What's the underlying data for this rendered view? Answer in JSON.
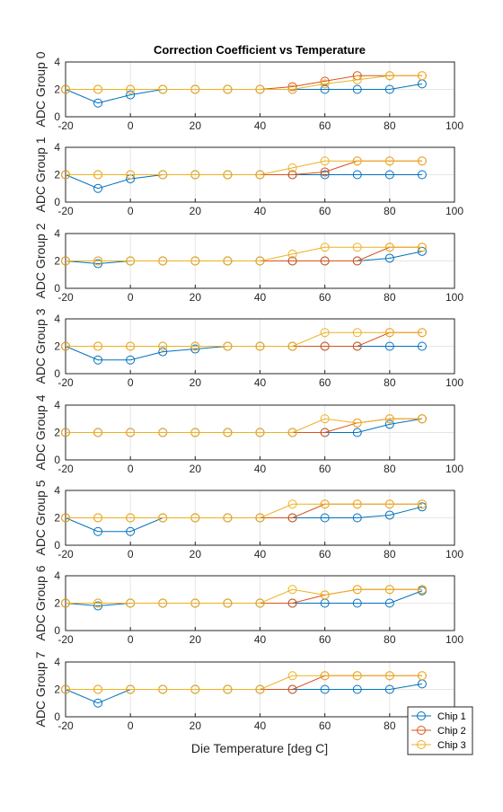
{
  "figure": {
    "title": "Correction Coefficient vs Temperature",
    "xlabel": "Die Temperature [deg C]"
  },
  "colors": {
    "chip1": "#0072BD",
    "chip2": "#D95319",
    "chip3": "#EDB120",
    "grid": "#e6e6e6",
    "axis": "#262626"
  },
  "legend": {
    "entries": [
      "Chip 1",
      "Chip 2",
      "Chip 3"
    ],
    "location": "bottom-right"
  },
  "chart_data": [
    {
      "type": "line",
      "ylabel": "ADC Group 0",
      "x": [
        -20,
        -10,
        0,
        10,
        20,
        30,
        40,
        50,
        60,
        70,
        80,
        90
      ],
      "xlim": [
        -20,
        100
      ],
      "ylim": [
        0,
        4
      ],
      "xticks": [
        "-20",
        "0",
        "20",
        "40",
        "60",
        "80",
        "100"
      ],
      "yticks": [
        "0",
        "2",
        "4"
      ],
      "series": [
        {
          "name": "Chip 1",
          "values": [
            2,
            1,
            1.6,
            2,
            2,
            2,
            2,
            2,
            2,
            2,
            2,
            2.4
          ]
        },
        {
          "name": "Chip 2",
          "values": [
            2,
            2,
            2,
            2,
            2,
            2,
            2,
            2.2,
            2.6,
            3,
            3,
            3
          ]
        },
        {
          "name": "Chip 3",
          "values": [
            2,
            2,
            2,
            2,
            2,
            2,
            2,
            2,
            2.4,
            2.7,
            3,
            3
          ]
        }
      ]
    },
    {
      "type": "line",
      "ylabel": "ADC Group 1",
      "x": [
        -20,
        -10,
        0,
        10,
        20,
        30,
        40,
        50,
        60,
        70,
        80,
        90
      ],
      "xlim": [
        -20,
        100
      ],
      "ylim": [
        0,
        4
      ],
      "xticks": [
        "-20",
        "0",
        "20",
        "40",
        "60",
        "80",
        "100"
      ],
      "yticks": [
        "0",
        "2",
        "4"
      ],
      "series": [
        {
          "name": "Chip 1",
          "values": [
            2,
            1,
            1.7,
            2,
            2,
            2,
            2,
            2,
            2,
            2,
            2,
            2
          ]
        },
        {
          "name": "Chip 2",
          "values": [
            2,
            2,
            2,
            2,
            2,
            2,
            2,
            2,
            2.2,
            3,
            3,
            3
          ]
        },
        {
          "name": "Chip 3",
          "values": [
            2,
            2,
            2,
            2,
            2,
            2,
            2,
            2.5,
            3,
            3,
            3,
            3
          ]
        }
      ]
    },
    {
      "type": "line",
      "ylabel": "ADC Group 2",
      "x": [
        -20,
        -10,
        0,
        10,
        20,
        30,
        40,
        50,
        60,
        70,
        80,
        90
      ],
      "xlim": [
        -20,
        100
      ],
      "ylim": [
        0,
        4
      ],
      "xticks": [
        "-20",
        "0",
        "20",
        "40",
        "60",
        "80",
        "100"
      ],
      "yticks": [
        "0",
        "2",
        "4"
      ],
      "series": [
        {
          "name": "Chip 1",
          "values": [
            2,
            1.8,
            2,
            2,
            2,
            2,
            2,
            2,
            2,
            2,
            2.2,
            2.7
          ]
        },
        {
          "name": "Chip 2",
          "values": [
            2,
            2,
            2,
            2,
            2,
            2,
            2,
            2,
            2,
            2,
            3,
            3
          ]
        },
        {
          "name": "Chip 3",
          "values": [
            2,
            2,
            2,
            2,
            2,
            2,
            2,
            2.5,
            3,
            3,
            3,
            3
          ]
        }
      ]
    },
    {
      "type": "line",
      "ylabel": "ADC Group 3",
      "x": [
        -20,
        -10,
        0,
        10,
        20,
        30,
        40,
        50,
        60,
        70,
        80,
        90
      ],
      "xlim": [
        -20,
        100
      ],
      "ylim": [
        0,
        4
      ],
      "xticks": [
        "-20",
        "0",
        "20",
        "40",
        "60",
        "80",
        "100"
      ],
      "yticks": [
        "0",
        "2",
        "4"
      ],
      "series": [
        {
          "name": "Chip 1",
          "values": [
            2,
            1,
            1,
            1.6,
            1.8,
            2,
            2,
            2,
            2,
            2,
            2,
            2
          ]
        },
        {
          "name": "Chip 2",
          "values": [
            2,
            2,
            2,
            2,
            2,
            2,
            2,
            2,
            2,
            2,
            3,
            3
          ]
        },
        {
          "name": "Chip 3",
          "values": [
            2,
            2,
            2,
            2,
            2,
            2,
            2,
            2,
            3,
            3,
            3,
            3
          ]
        }
      ]
    },
    {
      "type": "line",
      "ylabel": "ADC Group 4",
      "x": [
        -20,
        -10,
        0,
        10,
        20,
        30,
        40,
        50,
        60,
        70,
        80,
        90
      ],
      "xlim": [
        -20,
        100
      ],
      "ylim": [
        0,
        4
      ],
      "xticks": [
        "-20",
        "0",
        "20",
        "40",
        "60",
        "80",
        "100"
      ],
      "yticks": [
        "0",
        "2",
        "4"
      ],
      "series": [
        {
          "name": "Chip 1",
          "values": [
            2,
            2,
            2,
            2,
            2,
            2,
            2,
            2,
            2,
            2,
            2.6,
            3
          ]
        },
        {
          "name": "Chip 2",
          "values": [
            2,
            2,
            2,
            2,
            2,
            2,
            2,
            2,
            2,
            2.7,
            3,
            3
          ]
        },
        {
          "name": "Chip 3",
          "values": [
            2,
            2,
            2,
            2,
            2,
            2,
            2,
            2,
            3,
            2.7,
            3,
            3
          ]
        }
      ]
    },
    {
      "type": "line",
      "ylabel": "ADC Group 5",
      "x": [
        -20,
        -10,
        0,
        10,
        20,
        30,
        40,
        50,
        60,
        70,
        80,
        90
      ],
      "xlim": [
        -20,
        100
      ],
      "ylim": [
        0,
        4
      ],
      "xticks": [
        "-20",
        "0",
        "20",
        "40",
        "60",
        "80",
        "100"
      ],
      "yticks": [
        "0",
        "2",
        "4"
      ],
      "series": [
        {
          "name": "Chip 1",
          "values": [
            2,
            1,
            1,
            2,
            2,
            2,
            2,
            2,
            2,
            2,
            2.2,
            2.8
          ]
        },
        {
          "name": "Chip 2",
          "values": [
            2,
            2,
            2,
            2,
            2,
            2,
            2,
            2,
            3,
            3,
            3,
            3
          ]
        },
        {
          "name": "Chip 3",
          "values": [
            2,
            2,
            2,
            2,
            2,
            2,
            2,
            3,
            3,
            3,
            3,
            3
          ]
        }
      ]
    },
    {
      "type": "line",
      "ylabel": "ADC Group 6",
      "x": [
        -20,
        -10,
        0,
        10,
        20,
        30,
        40,
        50,
        60,
        70,
        80,
        90
      ],
      "xlim": [
        -20,
        100
      ],
      "ylim": [
        0,
        4
      ],
      "xticks": [
        "-20",
        "0",
        "20",
        "40",
        "60",
        "80",
        "100"
      ],
      "yticks": [
        "0",
        "2",
        "4"
      ],
      "series": [
        {
          "name": "Chip 1",
          "values": [
            2,
            1.8,
            2,
            2,
            2,
            2,
            2,
            2,
            2,
            2,
            2,
            2.9
          ]
        },
        {
          "name": "Chip 2",
          "values": [
            2,
            2,
            2,
            2,
            2,
            2,
            2,
            2,
            2.6,
            3,
            3,
            3
          ]
        },
        {
          "name": "Chip 3",
          "values": [
            2,
            2,
            2,
            2,
            2,
            2,
            2,
            3,
            2.6,
            3,
            3,
            3
          ]
        }
      ]
    },
    {
      "type": "line",
      "ylabel": "ADC Group 7",
      "x": [
        -20,
        -10,
        0,
        10,
        20,
        30,
        40,
        50,
        60,
        70,
        80,
        90
      ],
      "xlim": [
        -20,
        100
      ],
      "ylim": [
        0,
        4
      ],
      "xticks": [
        "-20",
        "0",
        "20",
        "40",
        "60",
        "80",
        "100"
      ],
      "yticks": [
        "0",
        "2",
        "4"
      ],
      "series": [
        {
          "name": "Chip 1",
          "values": [
            2,
            1,
            2,
            2,
            2,
            2,
            2,
            2,
            2,
            2,
            2,
            2.4
          ]
        },
        {
          "name": "Chip 2",
          "values": [
            2,
            2,
            2,
            2,
            2,
            2,
            2,
            2,
            3,
            3,
            3,
            3
          ]
        },
        {
          "name": "Chip 3",
          "values": [
            2,
            2,
            2,
            2,
            2,
            2,
            2,
            3,
            3,
            3,
            3,
            3
          ]
        }
      ]
    }
  ]
}
